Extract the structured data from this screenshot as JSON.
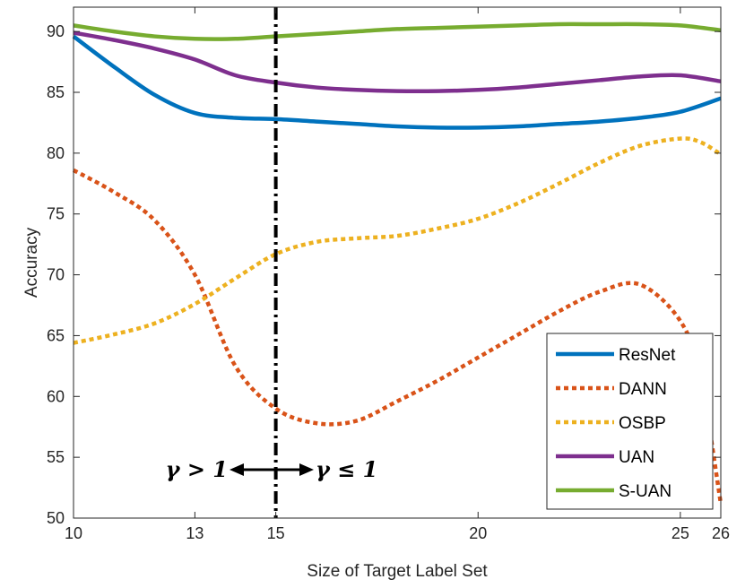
{
  "chart_data": {
    "type": "line",
    "title": "",
    "xlabel": "Size of Target Label Set",
    "ylabel": "Accuracy",
    "xlim": [
      10,
      26
    ],
    "ylim": [
      50,
      92
    ],
    "xticks": [
      10,
      13,
      15,
      20,
      25,
      26
    ],
    "yticks": [
      50,
      55,
      60,
      65,
      70,
      75,
      80,
      85,
      90
    ],
    "grid": false,
    "legend_position": "bottom-right",
    "divider": {
      "x": 15,
      "left_label": "γ > 1",
      "right_label": "γ ≤ 1"
    },
    "series": [
      {
        "name": "ResNet",
        "color": "#0072BD",
        "style": "solid",
        "x": [
          10,
          11,
          12,
          13,
          14,
          15,
          16,
          17,
          18,
          19,
          20,
          21,
          22,
          23,
          24,
          25,
          26
        ],
        "y": [
          89.6,
          87.1,
          84.8,
          83.3,
          82.9,
          82.8,
          82.6,
          82.4,
          82.2,
          82.1,
          82.1,
          82.2,
          82.4,
          82.6,
          82.9,
          83.4,
          84.5
        ]
      },
      {
        "name": "DANN",
        "color": "#D95319",
        "style": "dotted",
        "x": [
          10,
          11,
          12,
          13,
          14,
          15,
          16,
          17,
          18,
          19,
          20,
          21,
          22,
          23,
          24,
          25,
          25.5,
          26
        ],
        "y": [
          78.6,
          76.8,
          74.5,
          70.0,
          62.5,
          59.0,
          57.8,
          58.0,
          59.6,
          61.3,
          63.2,
          65.1,
          67.0,
          68.6,
          69.2,
          66.2,
          61.5,
          51.2
        ]
      },
      {
        "name": "OSBP",
        "color": "#EDB120",
        "style": "dotted",
        "x": [
          10,
          11,
          12,
          13,
          14,
          15,
          16,
          17,
          18,
          19,
          20,
          21,
          22,
          23,
          24,
          25,
          25.5,
          26
        ],
        "y": [
          64.4,
          65.1,
          66.0,
          67.6,
          69.7,
          71.7,
          72.7,
          73.0,
          73.2,
          73.8,
          74.6,
          75.9,
          77.5,
          79.2,
          80.6,
          81.2,
          80.9,
          79.9
        ]
      },
      {
        "name": "UAN",
        "color": "#7E2F8E",
        "style": "solid",
        "x": [
          10,
          11,
          12,
          13,
          14,
          15,
          16,
          17,
          18,
          19,
          20,
          21,
          22,
          23,
          24,
          25,
          26
        ],
        "y": [
          89.9,
          89.3,
          88.6,
          87.7,
          86.4,
          85.8,
          85.4,
          85.2,
          85.1,
          85.1,
          85.2,
          85.4,
          85.7,
          86.0,
          86.3,
          86.4,
          85.9
        ]
      },
      {
        "name": "S-UAN",
        "color": "#77AC30",
        "style": "solid",
        "x": [
          10,
          11,
          12,
          13,
          14,
          15,
          16,
          17,
          18,
          19,
          20,
          21,
          22,
          23,
          24,
          25,
          26
        ],
        "y": [
          90.5,
          90.0,
          89.6,
          89.4,
          89.4,
          89.6,
          89.8,
          90.0,
          90.2,
          90.3,
          90.4,
          90.5,
          90.6,
          90.6,
          90.6,
          90.5,
          90.1
        ]
      }
    ]
  }
}
